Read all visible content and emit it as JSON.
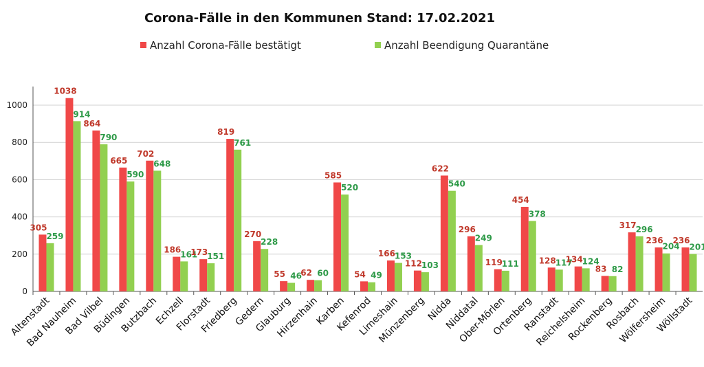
{
  "chart_data": {
    "type": "bar",
    "title": "Corona-Fälle in den Kommunen Stand: 17.02.2021",
    "xlabel": "",
    "ylabel": "",
    "ylim": [
      0,
      1100
    ],
    "yticks": [
      0,
      200,
      400,
      600,
      800,
      1000
    ],
    "grid": true,
    "legend_placement": "top",
    "categories": [
      "Altenstadt",
      "Bad Nauheim",
      "Bad Vilbel",
      "Büdingen",
      "Butzbach",
      "Echzell",
      "Florstadt",
      "Friedberg",
      "Gedern",
      "Glauburg",
      "Hirzenhain",
      "Karben",
      "Kefenrod",
      "Limeshain",
      "Münzenberg",
      "Nidda",
      "Niddatal",
      "Ober-Mörlen",
      "Ortenberg",
      "Ranstadt",
      "Reichelsheim",
      "Rockenberg",
      "Rosbach",
      "Wölfersheim",
      "Wöllstadt"
    ],
    "series": [
      {
        "name": "Anzahl Corona-Fälle bestätigt",
        "color": "#f04848",
        "label_color": "#c0392b",
        "values": [
          305,
          1038,
          864,
          665,
          702,
          186,
          173,
          819,
          270,
          55,
          62,
          585,
          54,
          166,
          112,
          622,
          296,
          119,
          454,
          128,
          134,
          83,
          317,
          236,
          236
        ]
      },
      {
        "name": "Anzahl Beendigung Quarantäne",
        "color": "#92d050",
        "label_color": "#2e9a48",
        "values": [
          259,
          914,
          790,
          590,
          648,
          161,
          151,
          761,
          228,
          46,
          60,
          520,
          49,
          153,
          103,
          540,
          249,
          111,
          378,
          117,
          124,
          82,
          296,
          204,
          201
        ]
      }
    ]
  }
}
